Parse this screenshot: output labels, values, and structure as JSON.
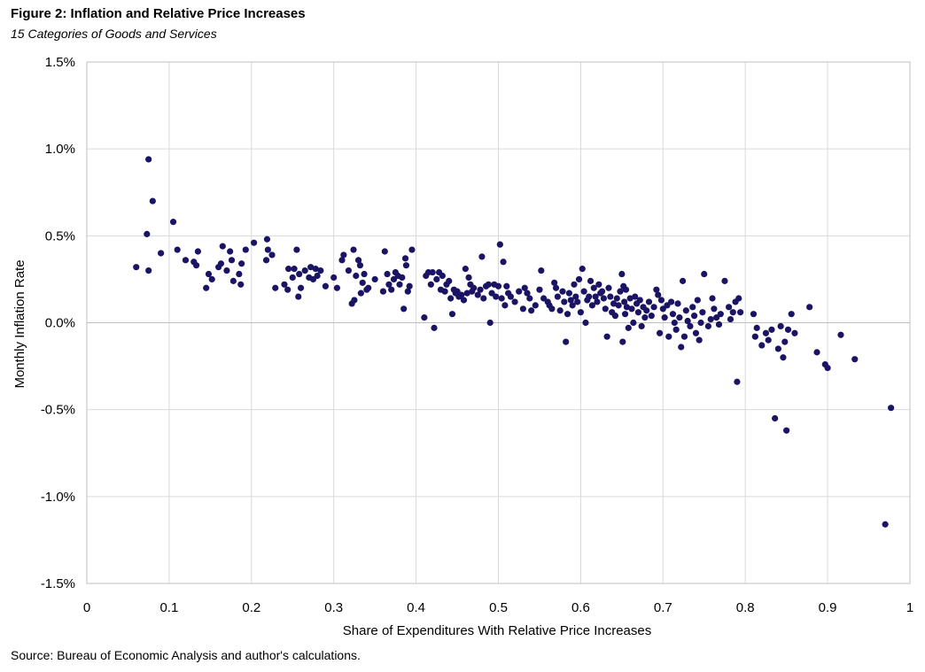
{
  "figure": {
    "title": "Figure 2: Inflation and Relative Price Increases",
    "subtitle": "15 Categories of Goods and Services",
    "source": "Source: Bureau of Economic Analysis and author's calculations."
  },
  "colors": {
    "marker": "#1b1464",
    "grid": "#d9d9d9",
    "zero_line": "#bfbfbf"
  },
  "chart_data": {
    "type": "scatter",
    "title": "Figure 2: Inflation and Relative Price Increases",
    "subtitle": "15 Categories of Goods and Services",
    "xlabel": "Share of Expenditures With Relative Price Increases",
    "ylabel": "Monthly Inflation Rate",
    "xlim": [
      0,
      1
    ],
    "ylim": [
      -1.5,
      1.5
    ],
    "x_ticks": [
      0,
      0.1,
      0.2,
      0.3,
      0.4,
      0.5,
      0.6,
      0.7,
      0.8,
      0.9,
      1
    ],
    "x_tick_labels": [
      "0",
      "0.1",
      "0.2",
      "0.3",
      "0.4",
      "0.5",
      "0.6",
      "0.7",
      "0.8",
      "0.9",
      "1"
    ],
    "y_ticks": [
      1.5,
      1.0,
      0.5,
      0.0,
      -0.5,
      -1.0,
      -1.5
    ],
    "y_tick_labels": [
      "1.5%",
      "1.0%",
      "0.5%",
      "0.0%",
      "-0.5%",
      "-1.0%",
      "-1.5%"
    ],
    "grid": true,
    "legend": "none",
    "points": [
      [
        0.06,
        0.32
      ],
      [
        0.075,
        0.94
      ],
      [
        0.073,
        0.51
      ],
      [
        0.08,
        0.7
      ],
      [
        0.075,
        0.3
      ],
      [
        0.09,
        0.4
      ],
      [
        0.105,
        0.58
      ],
      [
        0.11,
        0.42
      ],
      [
        0.12,
        0.36
      ],
      [
        0.13,
        0.35
      ],
      [
        0.133,
        0.33
      ],
      [
        0.135,
        0.41
      ],
      [
        0.145,
        0.2
      ],
      [
        0.148,
        0.28
      ],
      [
        0.152,
        0.25
      ],
      [
        0.16,
        0.32
      ],
      [
        0.163,
        0.34
      ],
      [
        0.165,
        0.44
      ],
      [
        0.17,
        0.3
      ],
      [
        0.174,
        0.41
      ],
      [
        0.176,
        0.36
      ],
      [
        0.178,
        0.24
      ],
      [
        0.185,
        0.28
      ],
      [
        0.187,
        0.22
      ],
      [
        0.188,
        0.34
      ],
      [
        0.193,
        0.42
      ],
      [
        0.203,
        0.46
      ],
      [
        0.218,
        0.36
      ],
      [
        0.219,
        0.48
      ],
      [
        0.22,
        0.42
      ],
      [
        0.225,
        0.39
      ],
      [
        0.229,
        0.2
      ],
      [
        0.24,
        0.22
      ],
      [
        0.244,
        0.19
      ],
      [
        0.245,
        0.31
      ],
      [
        0.25,
        0.26
      ],
      [
        0.252,
        0.31
      ],
      [
        0.255,
        0.42
      ],
      [
        0.257,
        0.15
      ],
      [
        0.258,
        0.28
      ],
      [
        0.26,
        0.2
      ],
      [
        0.265,
        0.3
      ],
      [
        0.27,
        0.26
      ],
      [
        0.272,
        0.32
      ],
      [
        0.275,
        0.25
      ],
      [
        0.278,
        0.31
      ],
      [
        0.28,
        0.27
      ],
      [
        0.284,
        0.3
      ],
      [
        0.29,
        0.21
      ],
      [
        0.3,
        0.26
      ],
      [
        0.304,
        0.2
      ],
      [
        0.31,
        0.36
      ],
      [
        0.312,
        0.39
      ],
      [
        0.318,
        0.3
      ],
      [
        0.322,
        0.11
      ],
      [
        0.324,
        0.42
      ],
      [
        0.325,
        0.13
      ],
      [
        0.327,
        0.27
      ],
      [
        0.33,
        0.36
      ],
      [
        0.332,
        0.33
      ],
      [
        0.333,
        0.17
      ],
      [
        0.335,
        0.23
      ],
      [
        0.337,
        0.28
      ],
      [
        0.34,
        0.19
      ],
      [
        0.342,
        0.2
      ],
      [
        0.35,
        0.25
      ],
      [
        0.36,
        0.18
      ],
      [
        0.362,
        0.41
      ],
      [
        0.365,
        0.28
      ],
      [
        0.367,
        0.22
      ],
      [
        0.37,
        0.19
      ],
      [
        0.373,
        0.25
      ],
      [
        0.375,
        0.29
      ],
      [
        0.378,
        0.27
      ],
      [
        0.38,
        0.22
      ],
      [
        0.383,
        0.26
      ],
      [
        0.385,
        0.08
      ],
      [
        0.387,
        0.37
      ],
      [
        0.388,
        0.33
      ],
      [
        0.39,
        0.18
      ],
      [
        0.392,
        0.21
      ],
      [
        0.395,
        0.42
      ],
      [
        0.41,
        0.03
      ],
      [
        0.412,
        0.27
      ],
      [
        0.415,
        0.29
      ],
      [
        0.418,
        0.22
      ],
      [
        0.42,
        0.29
      ],
      [
        0.422,
        -0.03
      ],
      [
        0.425,
        0.25
      ],
      [
        0.428,
        0.29
      ],
      [
        0.43,
        0.19
      ],
      [
        0.432,
        0.27
      ],
      [
        0.435,
        0.18
      ],
      [
        0.437,
        0.22
      ],
      [
        0.44,
        0.24
      ],
      [
        0.442,
        0.14
      ],
      [
        0.444,
        0.05
      ],
      [
        0.446,
        0.19
      ],
      [
        0.448,
        0.17
      ],
      [
        0.45,
        0.18
      ],
      [
        0.452,
        0.15
      ],
      [
        0.455,
        0.16
      ],
      [
        0.458,
        0.13
      ],
      [
        0.46,
        0.31
      ],
      [
        0.462,
        0.17
      ],
      [
        0.464,
        0.26
      ],
      [
        0.466,
        0.22
      ],
      [
        0.468,
        0.18
      ],
      [
        0.47,
        0.2
      ],
      [
        0.475,
        0.16
      ],
      [
        0.478,
        0.19
      ],
      [
        0.48,
        0.38
      ],
      [
        0.482,
        0.14
      ],
      [
        0.485,
        0.21
      ],
      [
        0.488,
        0.22
      ],
      [
        0.49,
        0.0
      ],
      [
        0.492,
        0.17
      ],
      [
        0.495,
        0.22
      ],
      [
        0.497,
        0.15
      ],
      [
        0.5,
        0.21
      ],
      [
        0.502,
        0.45
      ],
      [
        0.504,
        0.14
      ],
      [
        0.506,
        0.35
      ],
      [
        0.508,
        0.1
      ],
      [
        0.51,
        0.21
      ],
      [
        0.512,
        0.17
      ],
      [
        0.515,
        0.15
      ],
      [
        0.52,
        0.12
      ],
      [
        0.525,
        0.18
      ],
      [
        0.53,
        0.08
      ],
      [
        0.532,
        0.2
      ],
      [
        0.535,
        0.17
      ],
      [
        0.538,
        0.14
      ],
      [
        0.54,
        0.07
      ],
      [
        0.545,
        0.1
      ],
      [
        0.55,
        0.19
      ],
      [
        0.552,
        0.3
      ],
      [
        0.555,
        0.14
      ],
      [
        0.56,
        0.12
      ],
      [
        0.562,
        0.1
      ],
      [
        0.565,
        0.08
      ],
      [
        0.568,
        0.23
      ],
      [
        0.57,
        0.2
      ],
      [
        0.572,
        0.15
      ],
      [
        0.575,
        0.07
      ],
      [
        0.578,
        0.18
      ],
      [
        0.58,
        0.12
      ],
      [
        0.582,
        -0.11
      ],
      [
        0.584,
        0.05
      ],
      [
        0.586,
        0.17
      ],
      [
        0.588,
        0.13
      ],
      [
        0.59,
        0.1
      ],
      [
        0.592,
        0.22
      ],
      [
        0.594,
        0.15
      ],
      [
        0.596,
        0.12
      ],
      [
        0.598,
        0.25
      ],
      [
        0.6,
        0.06
      ],
      [
        0.602,
        0.31
      ],
      [
        0.604,
        0.18
      ],
      [
        0.606,
        0.0
      ],
      [
        0.608,
        0.13
      ],
      [
        0.61,
        0.15
      ],
      [
        0.612,
        0.24
      ],
      [
        0.614,
        0.1
      ],
      [
        0.616,
        0.2
      ],
      [
        0.618,
        0.15
      ],
      [
        0.62,
        0.12
      ],
      [
        0.622,
        0.22
      ],
      [
        0.624,
        0.17
      ],
      [
        0.626,
        0.18
      ],
      [
        0.628,
        0.14
      ],
      [
        0.63,
        0.08
      ],
      [
        0.632,
        -0.08
      ],
      [
        0.634,
        0.2
      ],
      [
        0.636,
        0.15
      ],
      [
        0.638,
        0.06
      ],
      [
        0.64,
        0.11
      ],
      [
        0.642,
        0.04
      ],
      [
        0.644,
        0.14
      ],
      [
        0.646,
        0.1
      ],
      [
        0.648,
        0.18
      ],
      [
        0.65,
        0.28
      ],
      [
        0.651,
        -0.11
      ],
      [
        0.652,
        0.21
      ],
      [
        0.653,
        0.12
      ],
      [
        0.654,
        0.05
      ],
      [
        0.655,
        0.19
      ],
      [
        0.656,
        0.09
      ],
      [
        0.658,
        -0.03
      ],
      [
        0.66,
        0.14
      ],
      [
        0.662,
        0.08
      ],
      [
        0.664,
        0.0
      ],
      [
        0.666,
        0.15
      ],
      [
        0.668,
        0.11
      ],
      [
        0.67,
        0.06
      ],
      [
        0.672,
        0.13
      ],
      [
        0.674,
        -0.02
      ],
      [
        0.676,
        0.09
      ],
      [
        0.678,
        0.03
      ],
      [
        0.68,
        0.07
      ],
      [
        0.683,
        0.12
      ],
      [
        0.686,
        0.04
      ],
      [
        0.689,
        0.09
      ],
      [
        0.692,
        0.19
      ],
      [
        0.694,
        0.16
      ],
      [
        0.696,
        -0.06
      ],
      [
        0.698,
        0.13
      ],
      [
        0.7,
        0.08
      ],
      [
        0.702,
        0.03
      ],
      [
        0.705,
        0.1
      ],
      [
        0.707,
        -0.08
      ],
      [
        0.71,
        0.12
      ],
      [
        0.712,
        0.05
      ],
      [
        0.714,
        0.0
      ],
      [
        0.716,
        -0.04
      ],
      [
        0.718,
        0.11
      ],
      [
        0.72,
        0.03
      ],
      [
        0.722,
        -0.14
      ],
      [
        0.724,
        0.24
      ],
      [
        0.726,
        -0.08
      ],
      [
        0.728,
        0.07
      ],
      [
        0.73,
        0.01
      ],
      [
        0.733,
        -0.02
      ],
      [
        0.736,
        0.09
      ],
      [
        0.738,
        0.04
      ],
      [
        0.74,
        -0.06
      ],
      [
        0.742,
        0.13
      ],
      [
        0.744,
        -0.1
      ],
      [
        0.746,
        0.0
      ],
      [
        0.748,
        0.06
      ],
      [
        0.75,
        0.28
      ],
      [
        0.755,
        -0.02
      ],
      [
        0.758,
        0.02
      ],
      [
        0.76,
        0.14
      ],
      [
        0.762,
        0.08
      ],
      [
        0.765,
        0.03
      ],
      [
        0.768,
        -0.01
      ],
      [
        0.77,
        0.05
      ],
      [
        0.775,
        0.24
      ],
      [
        0.78,
        0.09
      ],
      [
        0.782,
        0.02
      ],
      [
        0.785,
        0.06
      ],
      [
        0.788,
        0.12
      ],
      [
        0.79,
        -0.34
      ],
      [
        0.792,
        0.14
      ],
      [
        0.794,
        0.06
      ],
      [
        0.81,
        0.05
      ],
      [
        0.812,
        -0.08
      ],
      [
        0.814,
        -0.03
      ],
      [
        0.82,
        -0.13
      ],
      [
        0.825,
        -0.06
      ],
      [
        0.828,
        -0.1
      ],
      [
        0.832,
        -0.04
      ],
      [
        0.836,
        -0.55
      ],
      [
        0.84,
        -0.15
      ],
      [
        0.843,
        -0.02
      ],
      [
        0.846,
        -0.2
      ],
      [
        0.848,
        -0.11
      ],
      [
        0.85,
        -0.62
      ],
      [
        0.852,
        -0.04
      ],
      [
        0.856,
        0.05
      ],
      [
        0.86,
        -0.06
      ],
      [
        0.878,
        0.09
      ],
      [
        0.887,
        -0.17
      ],
      [
        0.897,
        -0.24
      ],
      [
        0.9,
        -0.26
      ],
      [
        0.916,
        -0.07
      ],
      [
        0.933,
        -0.21
      ],
      [
        0.97,
        -1.16
      ],
      [
        0.977,
        -0.49
      ]
    ]
  }
}
